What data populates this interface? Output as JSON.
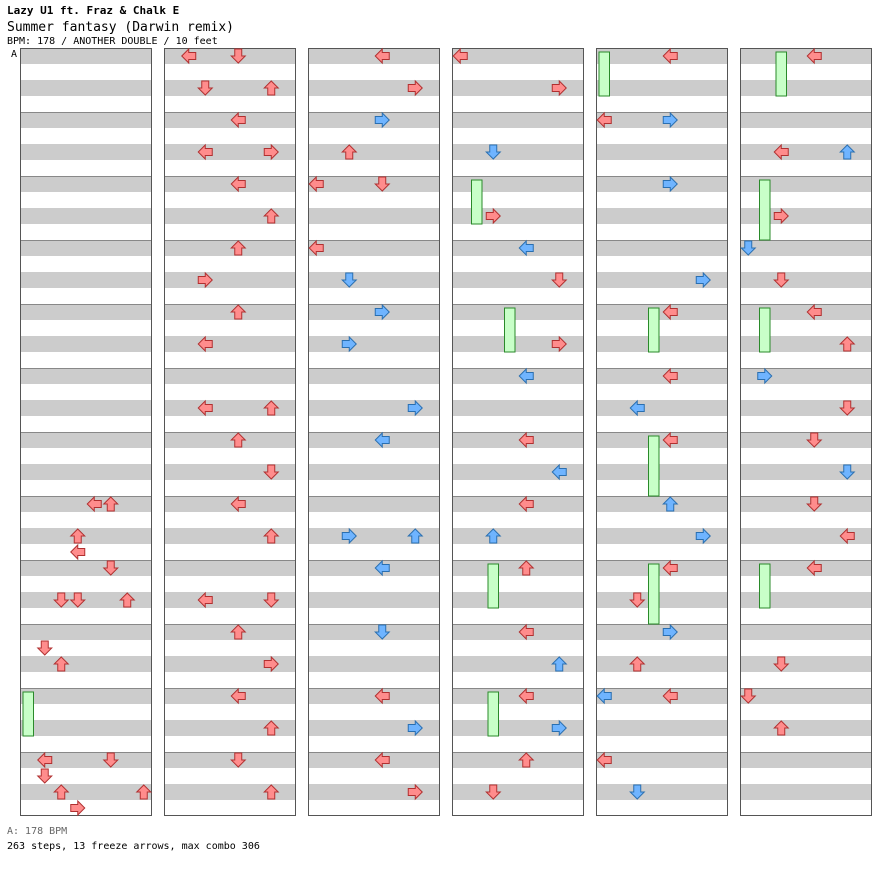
{
  "header": {
    "artist": "Lazy U1 ft. Fraz & Chalk E",
    "title": "Summer fantasy (Darwin remix)",
    "info": "BPM: 178 / ANOTHER DOUBLE / 10 feet"
  },
  "bpm_marker": "A",
  "footer": {
    "bpm_legend": "A: 178 BPM",
    "stats": "263 steps, 13 freeze arrows, max combo 306"
  },
  "colors": {
    "stripe": "#cccccc",
    "measure_line": "#888888",
    "quarter_note": "#ff8c8c",
    "eighth_note": "#6fb4ff",
    "freeze": "#c8ffc8",
    "arrow_stroke": "#b03030"
  },
  "chart_data": {
    "type": "table",
    "columns": 6,
    "measures_per_column": 12,
    "lanes": 8,
    "steps": 263,
    "freeze_arrows": 13,
    "max_combo": 306,
    "bpm": 178,
    "notes": [
      [
        0,
        7,
        3,
        "q",
        "left"
      ],
      [
        0,
        7,
        4,
        "q",
        "left"
      ],
      [
        0,
        7,
        10,
        "q",
        "up"
      ],
      [
        0,
        7,
        12,
        "q",
        "up"
      ],
      [
        0,
        8,
        6,
        "q",
        "up"
      ],
      [
        0,
        8,
        10,
        "q",
        "down"
      ],
      [
        0,
        8,
        12,
        "q",
        "down"
      ],
      [
        0,
        8,
        2,
        "q",
        "down"
      ],
      [
        0,
        9,
        1,
        "q",
        "down"
      ],
      [
        0,
        9,
        2,
        "q",
        "up"
      ],
      [
        0,
        11,
        3,
        "q",
        "right"
      ],
      [
        0,
        11,
        1,
        "q",
        "down"
      ],
      [
        0,
        11,
        2,
        "q",
        "up"
      ],
      [
        0,
        11,
        8,
        "q",
        "left"
      ],
      [
        0,
        11,
        12,
        "q",
        "down"
      ],
      [
        0,
        11,
        14,
        "q",
        "up"
      ],
      [
        1,
        0,
        2,
        "q",
        "down"
      ],
      [
        1,
        0,
        4,
        "q",
        "down"
      ],
      [
        1,
        0,
        6,
        "q",
        "up"
      ],
      [
        1,
        0,
        8,
        "q",
        "left"
      ],
      [
        1,
        1,
        2,
        "q",
        "left"
      ],
      [
        1,
        1,
        4,
        "q",
        "left"
      ],
      [
        1,
        1,
        6,
        "q",
        "right"
      ],
      [
        1,
        2,
        4,
        "q",
        "left"
      ],
      [
        1,
        2,
        6,
        "q",
        "up"
      ],
      [
        1,
        3,
        2,
        "q",
        "right"
      ],
      [
        1,
        3,
        4,
        "q",
        "up"
      ],
      [
        1,
        4,
        2,
        "q",
        "left"
      ],
      [
        1,
        4,
        4,
        "q",
        "up"
      ],
      [
        1,
        5,
        2,
        "q",
        "left"
      ],
      [
        1,
        5,
        6,
        "q",
        "up"
      ],
      [
        1,
        6,
        4,
        "q",
        "up"
      ],
      [
        1,
        6,
        6,
        "q",
        "down"
      ],
      [
        1,
        7,
        4,
        "q",
        "left"
      ],
      [
        1,
        7,
        6,
        "q",
        "up"
      ],
      [
        1,
        8,
        2,
        "q",
        "left"
      ],
      [
        1,
        8,
        6,
        "q",
        "down"
      ],
      [
        1,
        9,
        4,
        "q",
        "up"
      ],
      [
        1,
        9,
        6,
        "q",
        "right"
      ],
      [
        1,
        10,
        4,
        "q",
        "left"
      ],
      [
        1,
        10,
        6,
        "q",
        "up"
      ],
      [
        1,
        11,
        4,
        "q",
        "down"
      ],
      [
        1,
        11,
        6,
        "q",
        "up"
      ],
      [
        2,
        0,
        4,
        "q",
        "left"
      ],
      [
        2,
        0,
        6,
        "q",
        "right"
      ],
      [
        2,
        1,
        2,
        "q",
        "up"
      ],
      [
        2,
        1,
        4,
        "e",
        "right"
      ],
      [
        2,
        2,
        0,
        "q",
        "left"
      ],
      [
        2,
        2,
        4,
        "q",
        "down"
      ],
      [
        2,
        3,
        0,
        "q",
        "left"
      ],
      [
        2,
        3,
        2,
        "e",
        "down"
      ],
      [
        2,
        4,
        2,
        "e",
        "right"
      ],
      [
        2,
        4,
        4,
        "e",
        "right"
      ],
      [
        2,
        5,
        6,
        "e",
        "right"
      ],
      [
        2,
        6,
        4,
        "e",
        "left"
      ],
      [
        2,
        7,
        2,
        "e",
        "right"
      ],
      [
        2,
        7,
        6,
        "e",
        "up"
      ],
      [
        2,
        8,
        4,
        "e",
        "left"
      ],
      [
        2,
        9,
        4,
        "e",
        "down"
      ],
      [
        2,
        10,
        4,
        "q",
        "left"
      ],
      [
        2,
        10,
        6,
        "e",
        "right"
      ],
      [
        2,
        11,
        4,
        "q",
        "left"
      ],
      [
        2,
        11,
        6,
        "q",
        "right"
      ],
      [
        3,
        0,
        0,
        "q",
        "left"
      ],
      [
        3,
        0,
        6,
        "q",
        "right"
      ],
      [
        3,
        1,
        2,
        "e",
        "down"
      ],
      [
        3,
        2,
        2,
        "q",
        "right"
      ],
      [
        3,
        3,
        4,
        "e",
        "left"
      ],
      [
        3,
        3,
        6,
        "q",
        "down"
      ],
      [
        3,
        4,
        6,
        "q",
        "right"
      ],
      [
        3,
        5,
        4,
        "e",
        "left"
      ],
      [
        3,
        6,
        4,
        "q",
        "left"
      ],
      [
        3,
        6,
        6,
        "e",
        "left"
      ],
      [
        3,
        7,
        2,
        "e",
        "up"
      ],
      [
        3,
        7,
        4,
        "q",
        "left"
      ],
      [
        3,
        8,
        4,
        "q",
        "up"
      ],
      [
        3,
        9,
        4,
        "q",
        "left"
      ],
      [
        3,
        9,
        6,
        "e",
        "up"
      ],
      [
        3,
        10,
        4,
        "q",
        "left"
      ],
      [
        3,
        10,
        6,
        "e",
        "right"
      ],
      [
        3,
        11,
        2,
        "q",
        "down"
      ],
      [
        3,
        11,
        4,
        "q",
        "up"
      ],
      [
        4,
        0,
        4,
        "q",
        "left"
      ],
      [
        4,
        1,
        0,
        "q",
        "left"
      ],
      [
        4,
        1,
        4,
        "e",
        "right"
      ],
      [
        4,
        2,
        4,
        "e",
        "right"
      ],
      [
        4,
        3,
        6,
        "e",
        "right"
      ],
      [
        4,
        4,
        4,
        "q",
        "left"
      ],
      [
        4,
        5,
        2,
        "e",
        "left"
      ],
      [
        4,
        5,
        4,
        "q",
        "left"
      ],
      [
        4,
        6,
        4,
        "q",
        "left"
      ],
      [
        4,
        7,
        4,
        "e",
        "up"
      ],
      [
        4,
        7,
        6,
        "e",
        "right"
      ],
      [
        4,
        8,
        2,
        "q",
        "down"
      ],
      [
        4,
        8,
        4,
        "q",
        "left"
      ],
      [
        4,
        9,
        2,
        "q",
        "up"
      ],
      [
        4,
        9,
        4,
        "e",
        "right"
      ],
      [
        4,
        10,
        0,
        "e",
        "left"
      ],
      [
        4,
        10,
        4,
        "q",
        "left"
      ],
      [
        4,
        11,
        0,
        "q",
        "left"
      ],
      [
        4,
        11,
        2,
        "e",
        "down"
      ],
      [
        5,
        0,
        4,
        "q",
        "left"
      ],
      [
        5,
        1,
        2,
        "q",
        "left"
      ],
      [
        5,
        1,
        6,
        "e",
        "up"
      ],
      [
        5,
        2,
        2,
        "q",
        "right"
      ],
      [
        5,
        3,
        0,
        "e",
        "down"
      ],
      [
        5,
        3,
        2,
        "q",
        "down"
      ],
      [
        5,
        4,
        4,
        "q",
        "left"
      ],
      [
        5,
        4,
        6,
        "q",
        "up"
      ],
      [
        5,
        5,
        6,
        "q",
        "down"
      ],
      [
        5,
        5,
        8,
        "e",
        "right"
      ],
      [
        5,
        6,
        4,
        "q",
        "down"
      ],
      [
        5,
        6,
        6,
        "e",
        "down"
      ],
      [
        5,
        7,
        4,
        "q",
        "down"
      ],
      [
        5,
        7,
        6,
        "q",
        "left"
      ],
      [
        5,
        8,
        4,
        "q",
        "left"
      ],
      [
        5,
        9,
        2,
        "q",
        "down"
      ],
      [
        5,
        10,
        0,
        "q",
        "down"
      ],
      [
        5,
        10,
        2,
        "q",
        "up"
      ]
    ],
    "freezes": [
      [
        0,
        10,
        0,
        0,
        3
      ],
      [
        3,
        2,
        1,
        0,
        3
      ],
      [
        3,
        4,
        3,
        0,
        3
      ],
      [
        3,
        8,
        2,
        0,
        3
      ],
      [
        3,
        10,
        2,
        0,
        3
      ],
      [
        4,
        0,
        0,
        0,
        3
      ],
      [
        4,
        4,
        3,
        0,
        3
      ],
      [
        4,
        6,
        3,
        0,
        4
      ],
      [
        4,
        8,
        3,
        0,
        4
      ],
      [
        5,
        0,
        2,
        0,
        3
      ],
      [
        5,
        2,
        1,
        0,
        4
      ],
      [
        5,
        4,
        1,
        0,
        3
      ],
      [
        5,
        8,
        1,
        0,
        3
      ]
    ]
  }
}
